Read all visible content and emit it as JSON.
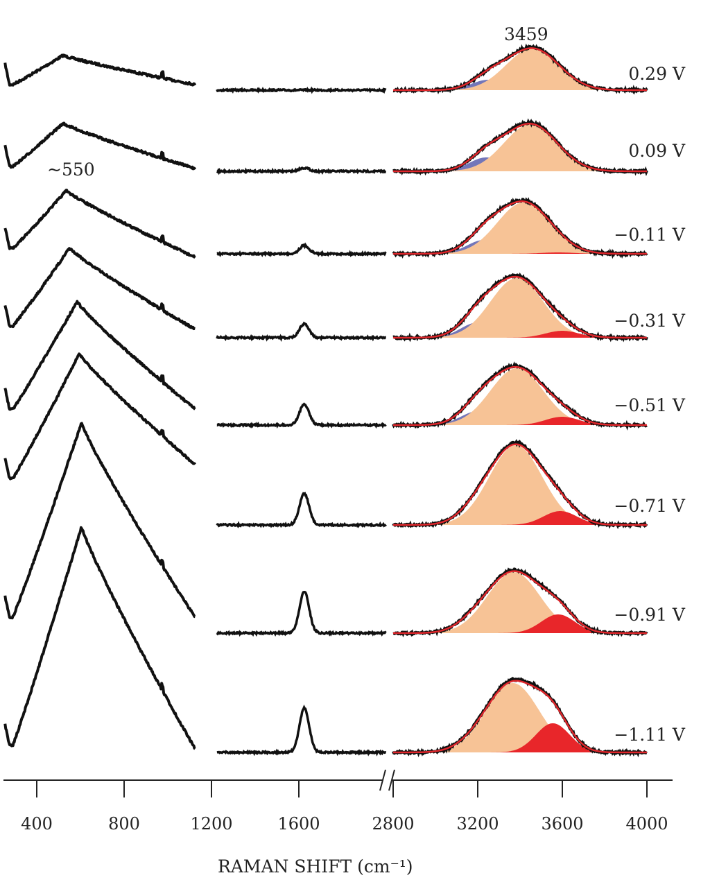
{
  "chart_data": {
    "type": "line",
    "xlabel": "RAMAN SHIFT (cm⁻¹)",
    "ylabel": "",
    "x_segments": [
      [
        250,
        1130
      ],
      [
        1225,
        2000
      ],
      [
        2800,
        4000
      ]
    ],
    "x_break": "//",
    "xticks": [
      400,
      800,
      1200,
      1600,
      2800,
      3200,
      3600,
      4000
    ],
    "xtick_labels": [
      "400",
      "800",
      "1200",
      "1600",
      "2800",
      "3200",
      "3600",
      "4000"
    ],
    "annotations": [
      {
        "text": "~550",
        "x": 550
      },
      {
        "text": "3459",
        "x": 3459
      }
    ],
    "fit_colors": {
      "blue": "#6b6fb5",
      "orange": "#f7c396",
      "red": "#e8262a",
      "fit_line": "#e0262b",
      "data": "#111111"
    },
    "series": [
      {
        "name": "0.29 V",
        "low_region": {
          "peak": 520,
          "peak_int": 42,
          "end_int": 0
        },
        "bend_1620": 0,
        "fit": {
          "blue": [
            3250,
            15,
            80
          ],
          "orange": [
            3459,
            60,
            125
          ],
          "red": [
            3580,
            0,
            80
          ]
        }
      },
      {
        "name": "0.09 V",
        "low_region": {
          "peak": 520,
          "peak_int": 62,
          "end_int": 3
        },
        "bend_1620": 5,
        "fit": {
          "blue": [
            3240,
            20,
            80
          ],
          "orange": [
            3450,
            68,
            125
          ],
          "red": [
            3580,
            0,
            80
          ]
        }
      },
      {
        "name": "−0.11 V",
        "low_region": {
          "peak": 535,
          "peak_int": 83,
          "end_int": 13
        },
        "bend_1620": 12,
        "fit": {
          "blue": [
            3230,
            20,
            80
          ],
          "orange": [
            3417,
            74,
            125
          ],
          "red": [
            3580,
            2,
            80
          ]
        }
      },
      {
        "name": "−0.31 V",
        "low_region": {
          "peak": 550,
          "peak_int": 112,
          "end_int": 5
        },
        "bend_1620": 20,
        "fit": {
          "blue": [
            3200,
            22,
            80
          ],
          "orange": [
            3385,
            86,
            125
          ],
          "red": [
            3600,
            10,
            80
          ]
        }
      },
      {
        "name": "−0.51 V",
        "low_region": {
          "peak": 585,
          "peak_int": 155,
          "end_int": 0
        },
        "bend_1620": 30,
        "fit": {
          "blue": [
            3200,
            20,
            80
          ],
          "orange": [
            3385,
            82,
            125
          ],
          "red": [
            3600,
            12,
            80
          ]
        }
      },
      {
        "name": "−0.71 V",
        "low_region": {
          "peak": 595,
          "peak_int": 180,
          "end_int": -20
        },
        "bend_1620": 45,
        "fit": {
          "blue": [
            3190,
            12,
            80
          ],
          "orange": [
            3380,
            115,
            125
          ],
          "red": [
            3590,
            20,
            80
          ]
        }
      },
      {
        "name": "−0.91 V",
        "low_region": {
          "peak": 605,
          "peak_int": 280,
          "end_int": 0
        },
        "bend_1620": 60,
        "fit": {
          "blue": [
            3180,
            9,
            80
          ],
          "orange": [
            3370,
            88,
            125
          ],
          "red": [
            3580,
            27,
            80
          ]
        }
      },
      {
        "name": "−1.11 V",
        "low_region": {
          "peak": 605,
          "peak_int": 315,
          "end_int": 5
        },
        "bend_1620": 64,
        "fit": {
          "blue": [
            3180,
            4,
            80
          ],
          "orange": [
            3365,
            100,
            125
          ],
          "red": [
            3555,
            42,
            80
          ]
        }
      }
    ]
  }
}
